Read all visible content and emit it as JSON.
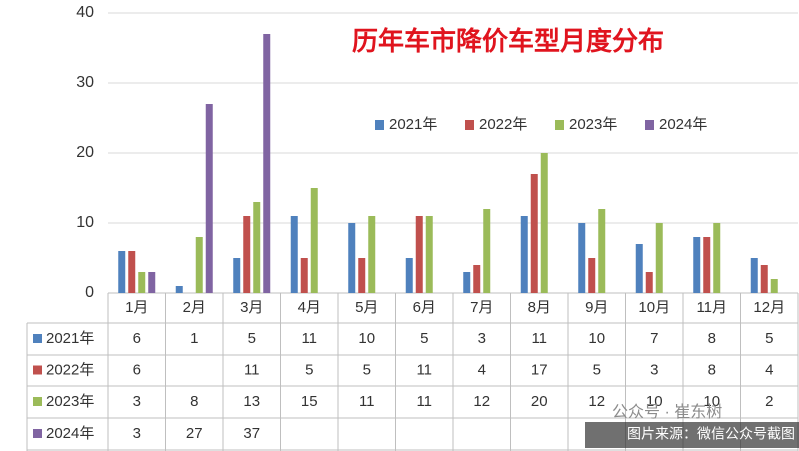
{
  "chart_data": {
    "type": "bar",
    "title": "历年车市降价车型月度分布",
    "categories": [
      "1月",
      "2月",
      "3月",
      "4月",
      "5月",
      "6月",
      "7月",
      "8月",
      "9月",
      "10月",
      "11月",
      "12月"
    ],
    "series": [
      {
        "name": "2021年",
        "color": "#4f81bd",
        "values": [
          6,
          1,
          5,
          11,
          10,
          5,
          3,
          11,
          10,
          7,
          8,
          5
        ]
      },
      {
        "name": "2022年",
        "color": "#c0504d",
        "values": [
          6,
          null,
          11,
          5,
          5,
          11,
          4,
          17,
          5,
          3,
          8,
          4
        ]
      },
      {
        "name": "2023年",
        "color": "#9bbb59",
        "values": [
          3,
          8,
          13,
          15,
          11,
          11,
          12,
          20,
          12,
          10,
          10,
          2
        ]
      },
      {
        "name": "2024年",
        "color": "#8064a2",
        "values": [
          3,
          27,
          37,
          null,
          null,
          null,
          null,
          null,
          null,
          null,
          null,
          null
        ]
      }
    ],
    "ylim": [
      0,
      40
    ],
    "yticks": [
      0,
      10,
      20,
      30,
      40
    ],
    "grid": true,
    "legend": "top-right",
    "data_table": true
  },
  "watermark": {
    "account": "公众号 · 崔东树",
    "source": "图片来源：微信公众号截图"
  }
}
